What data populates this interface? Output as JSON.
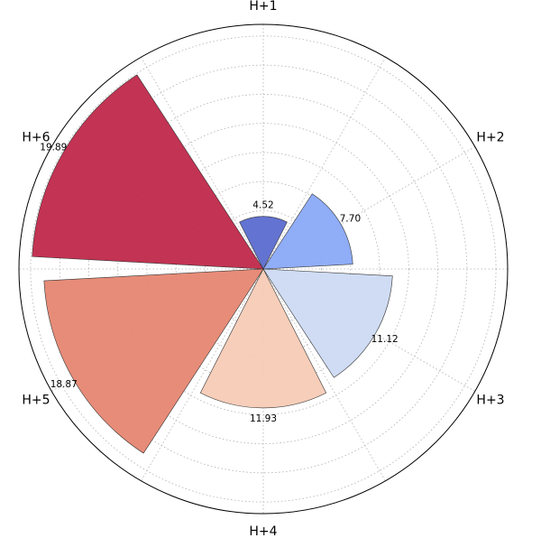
{
  "chart_data": {
    "type": "polar-bar",
    "categories": [
      "H+1",
      "H+2",
      "H+3",
      "H+4",
      "H+5",
      "H+6"
    ],
    "values": [
      4.52,
      7.7,
      11.12,
      11.93,
      18.87,
      19.89
    ],
    "value_labels": [
      "4.52",
      "7.70",
      "11.12",
      "11.93",
      "18.87",
      "19.89"
    ],
    "colors": [
      "#5b6bcf",
      "#8aa9f8",
      "#ccdaf2",
      "#f6cbb6",
      "#e68671",
      "#c0284a"
    ],
    "rmax": 21,
    "grid": true,
    "radial_grid_step": 2.5,
    "angular_grid": "every 30 degrees",
    "title": ""
  }
}
